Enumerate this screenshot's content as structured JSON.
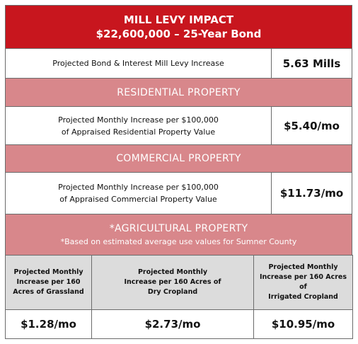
{
  "header": {
    "title": "MILL LEVY IMPACT",
    "subtitle": "$22,600,000 – 25-Year Bond"
  },
  "levy": {
    "label": "Projected Bond & Interest Mill Levy Increase",
    "value": "5.63 Mills"
  },
  "residential": {
    "heading": "RESIDENTIAL PROPERTY",
    "label": [
      "Projected Monthly Increase per $100,000",
      "of  Appraised Residential Property Value"
    ],
    "value": "$5.40/mo"
  },
  "commercial": {
    "heading": "COMMERCIAL PROPERTY",
    "label": [
      "Projected Monthly Increase per $100,000",
      "of Appraised Commercial Property Value"
    ],
    "value": "$11.73/mo"
  },
  "agricultural": {
    "heading": "*AGRICULTURAL PROPERTY",
    "note": "*Based on estimated average use values for Sumner County",
    "columns": [
      {
        "label": [
          "Projected Monthly",
          "Increase per 160",
          "Acres of Grassland"
        ],
        "value": "$1.28/mo"
      },
      {
        "label": [
          "Projected Monthly",
          "Increase per 160 Acres of",
          "Dry Cropland"
        ],
        "value": "$2.73/mo"
      },
      {
        "label": [
          "Projected Monthly",
          "Increase per 160 Acres",
          "of",
          "Irrigated Cropland"
        ],
        "value": "$10.95/mo"
      }
    ]
  }
}
